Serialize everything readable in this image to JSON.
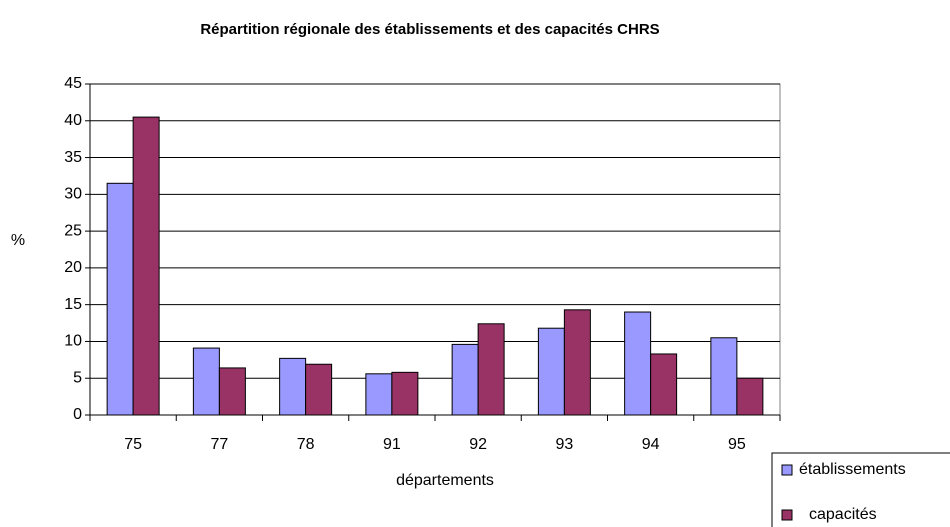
{
  "chart_data": {
    "type": "bar",
    "title": "Répartition régionale des établissements et des capacités CHRS",
    "x_label": "départements",
    "y_label": "%",
    "categories": [
      "75",
      "77",
      "78",
      "91",
      "92",
      "93",
      "94",
      "95"
    ],
    "series": [
      {
        "name": "établissements",
        "color": "#9999ff",
        "values": [
          31.5,
          9.1,
          7.7,
          5.6,
          9.6,
          11.8,
          14.0,
          10.5
        ]
      },
      {
        "name": "capacités",
        "color": "#993366",
        "values": [
          40.5,
          6.4,
          6.9,
          5.8,
          12.4,
          14.3,
          8.3,
          5.0
        ]
      }
    ],
    "ylim": [
      0,
      45
    ],
    "yticks": [
      0,
      5,
      10,
      15,
      20,
      25,
      30,
      35,
      40,
      45
    ],
    "grid": true,
    "legend": "bottom-right"
  }
}
